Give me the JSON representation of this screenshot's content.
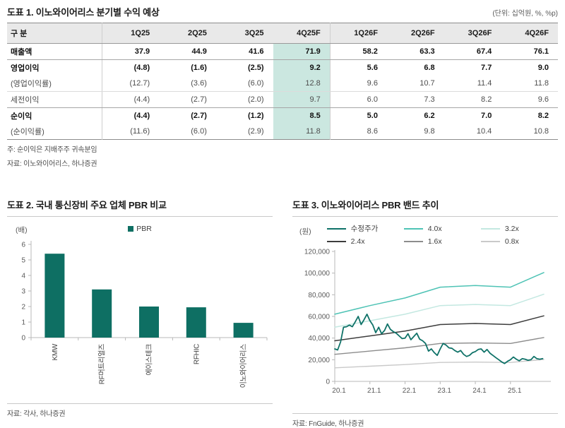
{
  "table1": {
    "title": "도표 1.  이노와이어리스 분기별 수익 예상",
    "unit_note": "(단위: 십억원, %, %p)",
    "columns": [
      "구 분",
      "1Q25",
      "2Q25",
      "3Q25",
      "4Q25F",
      "1Q26F",
      "2Q26F",
      "3Q26F",
      "4Q26F"
    ],
    "highlight_column": "4Q25F",
    "highlight_value_index": 3,
    "highlight_color": "#cbe7e0",
    "rows": [
      {
        "label": "매출액",
        "bold": true,
        "rule_below": "med",
        "values": [
          "37.9",
          "44.9",
          "41.6",
          "71.9",
          "58.2",
          "63.3",
          "67.4",
          "76.1"
        ]
      },
      {
        "label": "영업이익",
        "bold": true,
        "rule_below": null,
        "values": [
          "(4.8)",
          "(1.6)",
          "(2.5)",
          "9.2",
          "5.6",
          "6.8",
          "7.7",
          "9.0"
        ]
      },
      {
        "label": "(영업이익률)",
        "bold": false,
        "rule_below": "light",
        "values": [
          "(12.7)",
          "(3.6)",
          "(6.0)",
          "12.8",
          "9.6",
          "10.7",
          "11.4",
          "11.8"
        ]
      },
      {
        "label": "세전이익",
        "bold": false,
        "rule_below": "med",
        "values": [
          "(4.4)",
          "(2.7)",
          "(2.0)",
          "9.7",
          "6.0",
          "7.3",
          "8.2",
          "9.6"
        ]
      },
      {
        "label": "순이익",
        "bold": true,
        "rule_below": null,
        "values": [
          "(4.4)",
          "(2.7)",
          "(1.2)",
          "8.5",
          "5.0",
          "6.2",
          "7.0",
          "8.2"
        ]
      },
      {
        "label": "(순이익률)",
        "bold": false,
        "rule_below": null,
        "values": [
          "(11.6)",
          "(6.0)",
          "(2.9)",
          "11.8",
          "8.6",
          "9.8",
          "10.4",
          "10.8"
        ]
      }
    ],
    "note": "주: 순이익은 지배주주 귀속분임",
    "source": "자료: 이노와이어리스, 하나증권"
  },
  "chart_data": [
    {
      "type": "bar",
      "title": "도표 2. 국내 통신장비 주요 업체 PBR 비교",
      "ylabel": "(배)",
      "legend_label": "PBR",
      "bar_color": "#0e6f63",
      "ylim": [
        0,
        6
      ],
      "yticks": [
        0,
        1,
        2,
        3,
        4,
        5,
        6
      ],
      "categories": [
        "KMW",
        "RF머트리얼즈",
        "에이스테크",
        "RFHIC",
        "이노와이어리스"
      ],
      "values": [
        5.4,
        3.1,
        2.0,
        1.95,
        0.95
      ],
      "grid": false,
      "source": "자료: 각사, 하나증권"
    },
    {
      "type": "line",
      "title": "도표 3. 이노와이어리스 PBR 밴드 추이",
      "ylabel": "(원)",
      "ylim": [
        0,
        120000
      ],
      "yticks": [
        0,
        20000,
        40000,
        60000,
        80000,
        100000,
        120000
      ],
      "xlim": [
        2020,
        2026.15
      ],
      "xticks": [
        {
          "label": "20.1",
          "x": 2020
        },
        {
          "label": "21.1",
          "x": 2021
        },
        {
          "label": "22.1",
          "x": 2022
        },
        {
          "label": "23.1",
          "x": 2023
        },
        {
          "label": "24.1",
          "x": 2024
        },
        {
          "label": "25.1",
          "x": 2025
        }
      ],
      "grid": false,
      "legend_position": "top",
      "series": [
        {
          "name": "수정주가",
          "color": "#0f7268",
          "width": 1.8,
          "x0": 2020.0,
          "dx": 0.083333,
          "values": [
            30000,
            29000,
            36500,
            50000,
            50500,
            52000,
            50500,
            55000,
            60000,
            52500,
            57000,
            62000,
            56000,
            52000,
            45000,
            50000,
            44000,
            47000,
            53000,
            48000,
            46000,
            44500,
            42000,
            39500,
            40000,
            44000,
            38500,
            41500,
            44500,
            39000,
            37500,
            35000,
            28000,
            30000,
            26500,
            24000,
            30000,
            35000,
            33500,
            31000,
            30500,
            28500,
            27000,
            28500,
            25000,
            23000,
            24000,
            26500,
            27500,
            29500,
            30000,
            27000,
            29500,
            26000,
            24000,
            22000,
            20000,
            18000,
            16500,
            18500,
            20000,
            22500,
            20500,
            19000,
            21000,
            20500,
            19500,
            20000,
            23000,
            21000,
            20500,
            21000
          ]
        },
        {
          "name": "4.0x",
          "color": "#4ec3b5",
          "width": 1.5,
          "x": [
            2020,
            2021,
            2022,
            2023,
            2024,
            2025,
            2025.95
          ],
          "values": [
            62000,
            70000,
            77000,
            87000,
            88500,
            87000,
            100500
          ]
        },
        {
          "name": "3.2x",
          "color": "#c3e8e1",
          "width": 1.5,
          "x": [
            2020,
            2021,
            2022,
            2023,
            2024,
            2025,
            2025.95
          ],
          "values": [
            50000,
            56000,
            62000,
            70000,
            71000,
            70000,
            80500
          ]
        },
        {
          "name": "2.4x",
          "color": "#3d3d3d",
          "width": 1.5,
          "x": [
            2020,
            2021,
            2022,
            2023,
            2024,
            2025,
            2025.95
          ],
          "values": [
            37500,
            42000,
            46500,
            52500,
            53500,
            52500,
            60500
          ]
        },
        {
          "name": "1.6x",
          "color": "#8c8c8c",
          "width": 1.4,
          "x": [
            2020,
            2021,
            2022,
            2023,
            2024,
            2025,
            2025.95
          ],
          "values": [
            25000,
            28000,
            31000,
            35000,
            35500,
            35000,
            40500
          ]
        },
        {
          "name": "0.8x",
          "color": "#c9c9c9",
          "width": 1.4,
          "x": [
            2020,
            2021,
            2022,
            2023,
            2024,
            2025,
            2025.95
          ],
          "values": [
            12500,
            14000,
            15500,
            17500,
            17800,
            17500,
            20200
          ]
        }
      ],
      "source": "자료: FnGuide, 하나증권"
    }
  ]
}
